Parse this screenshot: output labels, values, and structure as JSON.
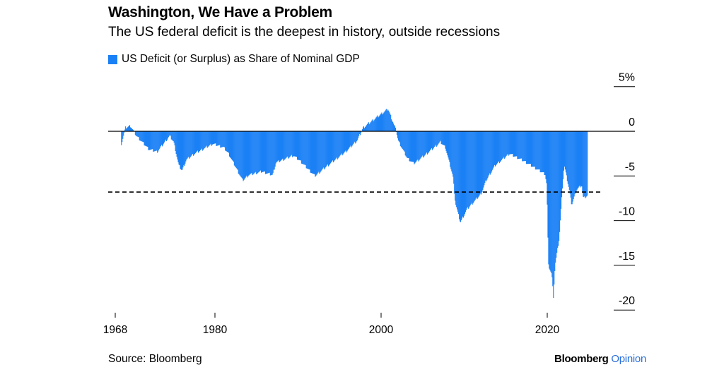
{
  "header": {
    "title": "Washington, We Have a Problem",
    "subtitle": "The US federal deficit is the deepest in history, outside recessions"
  },
  "footer": {
    "source": "Source: Bloomberg",
    "logo_brand": "Bloomberg",
    "logo_section": "Opinion"
  },
  "chart_data": {
    "type": "area",
    "title": "Washington, We Have a Problem",
    "subtitle": "The US federal deficit is the deepest in history, outside recessions",
    "legend": [
      {
        "name": "US Deficit (or Surplus) as Share of Nominal GDP",
        "color": "#1a80f5"
      }
    ],
    "legend_placement": "top-left",
    "xlabel": "",
    "ylabel": "",
    "x_ticks": [
      1968,
      1980,
      2000,
      2020
    ],
    "y_ticks": [
      {
        "value": 5,
        "label": "5%"
      },
      {
        "value": 0,
        "label": "0"
      },
      {
        "value": -5,
        "label": "-5"
      },
      {
        "value": -10,
        "label": "-10"
      },
      {
        "value": -15,
        "label": "-15"
      },
      {
        "value": -20,
        "label": "-20"
      }
    ],
    "ylim": [
      -20,
      5
    ],
    "grid": false,
    "reference_lines": [
      {
        "value": 0,
        "style": "solid"
      },
      {
        "value": -6.8,
        "style": "dashed"
      }
    ],
    "series": [
      {
        "name": "US Deficit (or Surplus) as Share of Nominal GDP",
        "color": "#1a80f5",
        "points": [
          [
            1968.7,
            -1.4
          ],
          [
            1969.2,
            0.4
          ],
          [
            1969.8,
            0.6
          ],
          [
            1970.5,
            -0.5
          ],
          [
            1972.0,
            -2.0
          ],
          [
            1973.0,
            -2.3
          ],
          [
            1974.5,
            -0.5
          ],
          [
            1975.0,
            -1.2
          ],
          [
            1975.6,
            -3.8
          ],
          [
            1976.0,
            -4.4
          ],
          [
            1976.5,
            -3.2
          ],
          [
            1977.5,
            -2.5
          ],
          [
            1979.7,
            -1.4
          ],
          [
            1981.0,
            -1.8
          ],
          [
            1981.6,
            -2.5
          ],
          [
            1983.3,
            -5.5
          ],
          [
            1984.0,
            -4.9
          ],
          [
            1985.6,
            -4.5
          ],
          [
            1986.9,
            -4.9
          ],
          [
            1987.3,
            -3.5
          ],
          [
            1989.4,
            -2.7
          ],
          [
            1990.3,
            -3.4
          ],
          [
            1992.0,
            -5.0
          ],
          [
            1993.3,
            -4.0
          ],
          [
            1995.8,
            -2.2
          ],
          [
            1997.1,
            -1.0
          ],
          [
            1997.8,
            0.4
          ],
          [
            1999.2,
            1.4
          ],
          [
            2000.8,
            2.5
          ],
          [
            2001.8,
            0.0
          ],
          [
            2002.0,
            -1.0
          ],
          [
            2003.1,
            -3.0
          ],
          [
            2003.9,
            -3.6
          ],
          [
            2005.2,
            -2.7
          ],
          [
            2007.1,
            -1.2
          ],
          [
            2007.7,
            -1.8
          ],
          [
            2008.6,
            -5.0
          ],
          [
            2008.9,
            -8.0
          ],
          [
            2009.5,
            -10.2
          ],
          [
            2010.3,
            -8.7
          ],
          [
            2012.0,
            -7.0
          ],
          [
            2012.6,
            -5.5
          ],
          [
            2013.7,
            -3.8
          ],
          [
            2015.4,
            -2.5
          ],
          [
            2017.1,
            -3.3
          ],
          [
            2019.7,
            -4.8
          ],
          [
            2019.9,
            -6.0
          ],
          [
            2020.1,
            -15.0
          ],
          [
            2020.5,
            -16.0
          ],
          [
            2020.7,
            -18.5
          ],
          [
            2020.9,
            -15.0
          ],
          [
            2021.4,
            -12.0
          ],
          [
            2021.8,
            -6.0
          ],
          [
            2022.0,
            -3.8
          ],
          [
            2022.6,
            -6.5
          ],
          [
            2022.9,
            -8.2
          ],
          [
            2023.5,
            -6.5
          ],
          [
            2024.1,
            -6.0
          ],
          [
            2024.3,
            -7.5
          ],
          [
            2024.8,
            -7.2
          ]
        ]
      }
    ]
  }
}
